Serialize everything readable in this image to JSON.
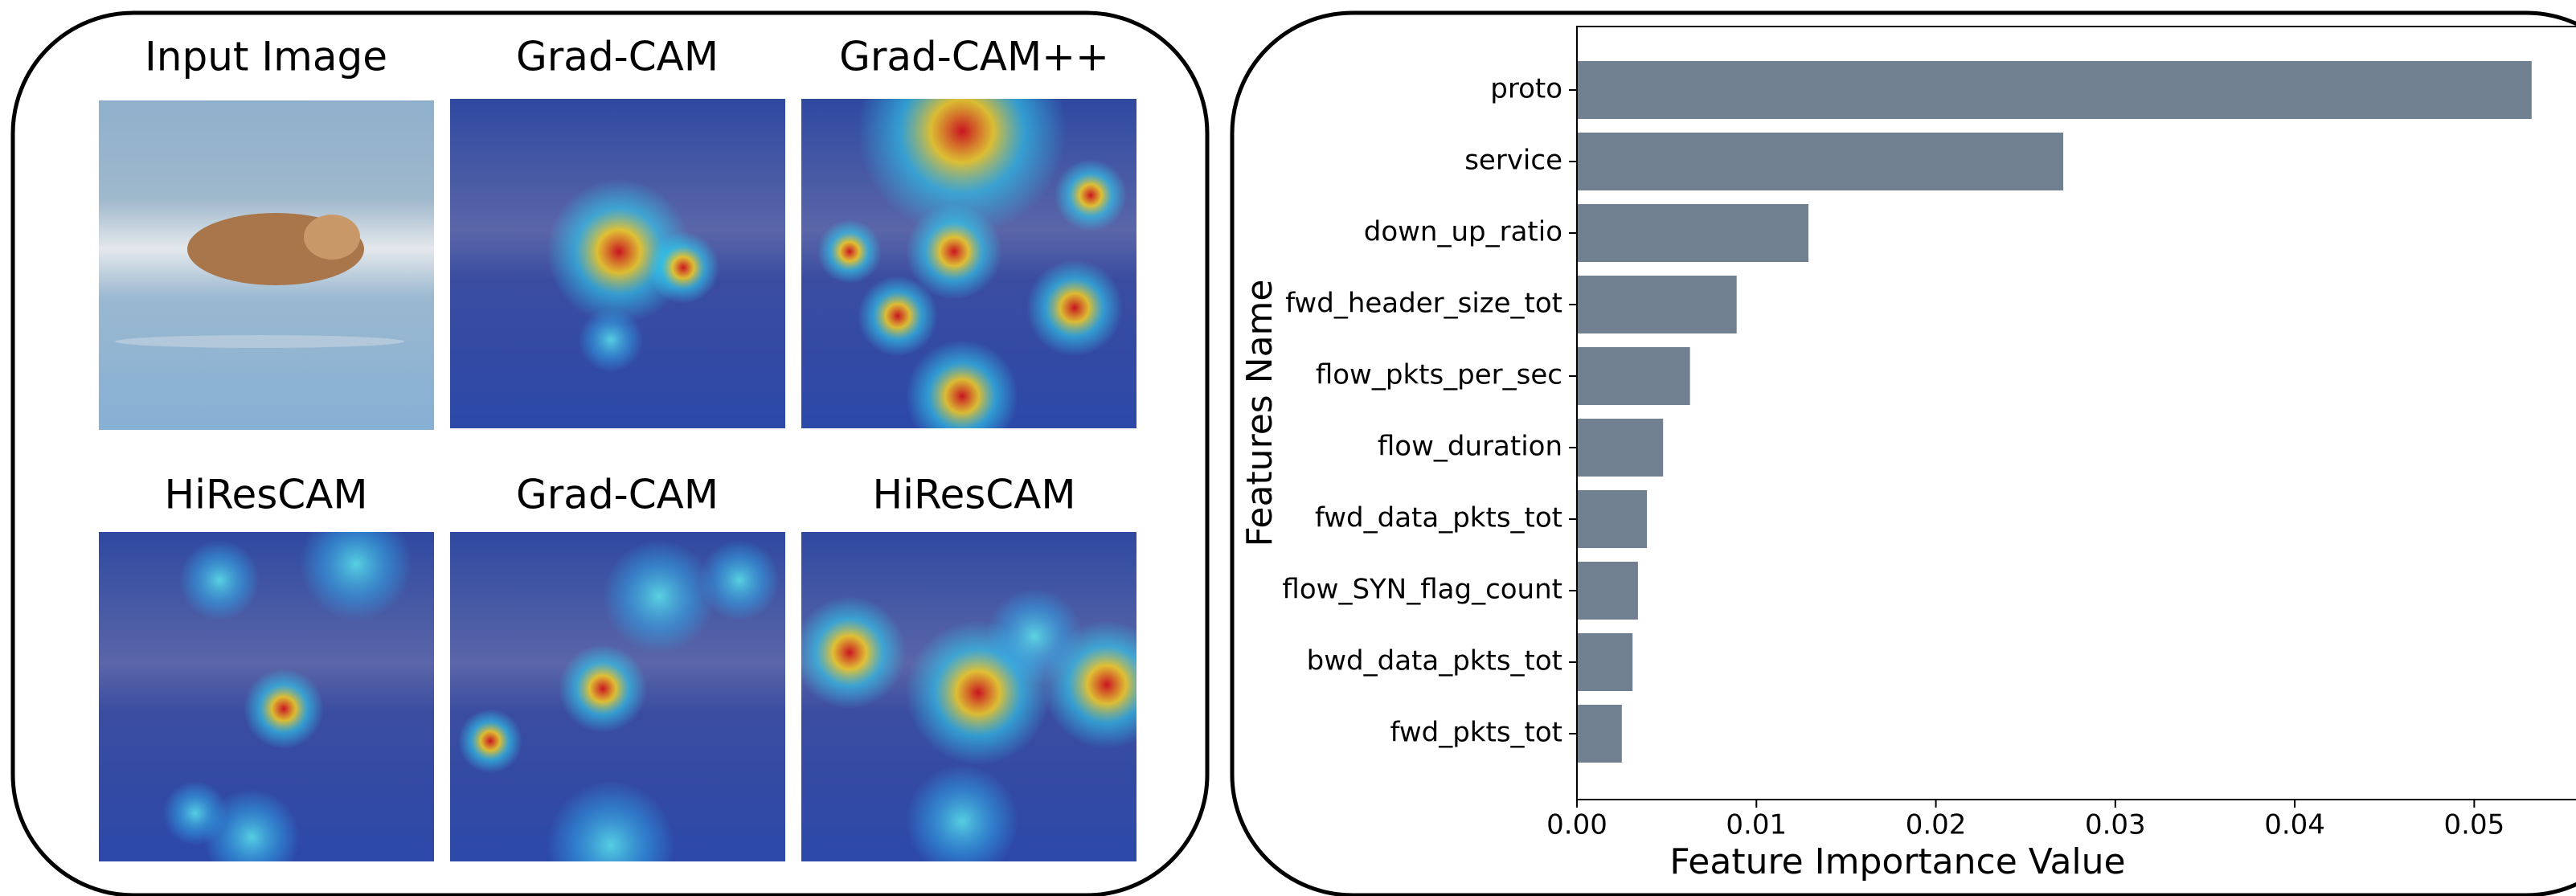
{
  "image_grid": {
    "titles": [
      "Input Image",
      "Grad-CAM",
      "Grad-CAM++",
      "HiResCAM",
      "Grad-CAM",
      "HiResCAM"
    ]
  },
  "chart_data": {
    "type": "barh",
    "categories": [
      "proto",
      "service",
      "down_up_ratio",
      "fwd_header_size_tot",
      "flow_pkts_per_sec",
      "flow_duration",
      "fwd_data_pkts_tot",
      "flow_SYN_flag_count",
      "bwd_data_pkts_tot",
      "fwd_pkts_tot"
    ],
    "values": [
      0.0532,
      0.0271,
      0.0129,
      0.0089,
      0.0063,
      0.0048,
      0.0039,
      0.0034,
      0.0031,
      0.0025
    ],
    "color": "#708090",
    "xlabel": "Feature Importance Value",
    "ylabel": "Features Name",
    "xlim": [
      0,
      0.055
    ],
    "xticks": [
      {
        "value": 0,
        "label": "0.00"
      },
      {
        "value": 0.01,
        "label": "0.01"
      },
      {
        "value": 0.02,
        "label": "0.02"
      },
      {
        "value": 0.03,
        "label": "0.03"
      },
      {
        "value": 0.04,
        "label": "0.04"
      },
      {
        "value": 0.05,
        "label": "0.05"
      }
    ]
  }
}
